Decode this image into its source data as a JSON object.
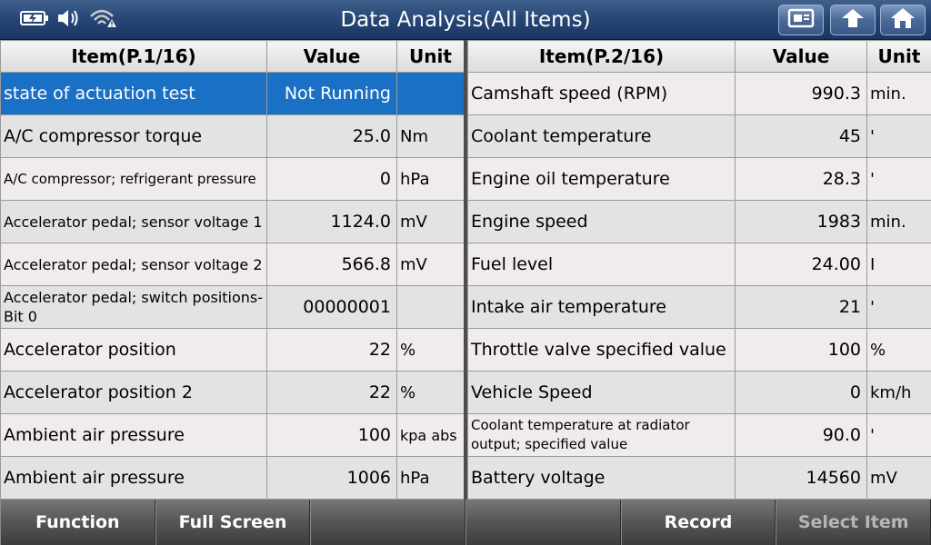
{
  "header": {
    "title": "Data Analysis(All Items)"
  },
  "left_table": {
    "headers": [
      "Item(P.1/16)",
      "Value",
      "Unit"
    ],
    "rows": [
      {
        "item": "state of actuation test",
        "value": "Not Running",
        "unit": ""
      },
      {
        "item": "A/C compressor torque",
        "value": "25.0",
        "unit": "Nm"
      },
      {
        "item": "A/C compressor; refrigerant pressure",
        "value": "0",
        "unit": "hPa"
      },
      {
        "item": "Accelerator pedal; sensor voltage 1",
        "value": "1124.0",
        "unit": "mV"
      },
      {
        "item": "Accelerator pedal; sensor voltage 2",
        "value": "566.8",
        "unit": "mV"
      },
      {
        "item": "Accelerator pedal; switch positions-Bit 0",
        "value": "00000001",
        "unit": ""
      },
      {
        "item": "Accelerator position",
        "value": "22",
        "unit": "%"
      },
      {
        "item": "Accelerator position 2",
        "value": "22",
        "unit": "%"
      },
      {
        "item": "Ambient air pressure",
        "value": "100",
        "unit": "kpa abs"
      },
      {
        "item": "Ambient air pressure",
        "value": "1006",
        "unit": "hPa"
      }
    ]
  },
  "right_table": {
    "headers": [
      "Item(P.2/16)",
      "Value",
      "Unit"
    ],
    "rows": [
      {
        "item": "Camshaft speed (RPM)",
        "value": "990.3",
        "unit": "min."
      },
      {
        "item": "Coolant temperature",
        "value": "45",
        "unit": "'"
      },
      {
        "item": "Engine oil temperature",
        "value": "28.3",
        "unit": "'"
      },
      {
        "item": "Engine speed",
        "value": "1983",
        "unit": "min."
      },
      {
        "item": "Fuel level",
        "value": "24.00",
        "unit": "I"
      },
      {
        "item": "Intake air temperature",
        "value": "21",
        "unit": "'"
      },
      {
        "item": "Throttle valve specified value",
        "value": "100",
        "unit": "%"
      },
      {
        "item": "Vehicle Speed",
        "value": "0",
        "unit": "km/h"
      },
      {
        "item": "Coolant temperature at radiator output; specified value",
        "value": "90.0",
        "unit": "'"
      },
      {
        "item": "Battery voltage",
        "value": "14560",
        "unit": "mV"
      }
    ]
  },
  "bottom_bar": {
    "buttons": [
      "Function",
      "Full Screen",
      "",
      "",
      "Record",
      "Select Item"
    ]
  },
  "icons": {
    "status": [
      "battery-icon",
      "speaker-icon",
      "wifi-warning-icon"
    ],
    "toolbar": [
      "report-icon",
      "back-icon",
      "home-icon"
    ]
  },
  "colors": {
    "selected_row": "#1a70c4",
    "title_bar": "#284878"
  }
}
